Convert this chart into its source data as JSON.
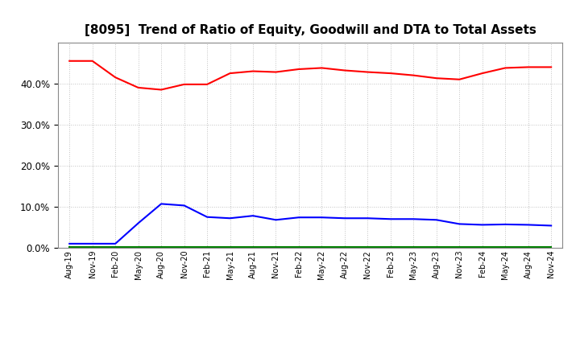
{
  "title": "[8095]  Trend of Ratio of Equity, Goodwill and DTA to Total Assets",
  "x_labels": [
    "Aug-19",
    "Nov-19",
    "Feb-20",
    "May-20",
    "Aug-20",
    "Nov-20",
    "Feb-21",
    "May-21",
    "Aug-21",
    "Nov-21",
    "Feb-22",
    "May-22",
    "Aug-22",
    "Nov-22",
    "Feb-23",
    "May-23",
    "Aug-23",
    "Nov-23",
    "Feb-24",
    "May-24",
    "Aug-24",
    "Nov-24"
  ],
  "equity": [
    0.455,
    0.455,
    0.415,
    0.39,
    0.385,
    0.398,
    0.398,
    0.425,
    0.43,
    0.428,
    0.435,
    0.438,
    0.432,
    0.428,
    0.425,
    0.42,
    0.413,
    0.41,
    0.425,
    0.438,
    0.44,
    0.44
  ],
  "goodwill": [
    0.01,
    0.01,
    0.01,
    0.06,
    0.107,
    0.103,
    0.075,
    0.072,
    0.078,
    0.068,
    0.074,
    0.074,
    0.072,
    0.072,
    0.07,
    0.07,
    0.068,
    0.058,
    0.056,
    0.057,
    0.056,
    0.054
  ],
  "dta": [
    0.002,
    0.002,
    0.002,
    0.002,
    0.002,
    0.002,
    0.002,
    0.002,
    0.002,
    0.002,
    0.002,
    0.002,
    0.002,
    0.002,
    0.002,
    0.002,
    0.002,
    0.002,
    0.002,
    0.002,
    0.002,
    0.002
  ],
  "equity_color": "#FF0000",
  "goodwill_color": "#0000FF",
  "dta_color": "#008000",
  "ylim": [
    0.0,
    0.5
  ],
  "yticks": [
    0.0,
    0.1,
    0.2,
    0.3,
    0.4
  ],
  "background_color": "#FFFFFF",
  "plot_bg_color": "#FFFFFF",
  "grid_color": "#BBBBBB",
  "title_fontsize": 11,
  "tick_fontsize": 7,
  "legend_fontsize": 8.5
}
